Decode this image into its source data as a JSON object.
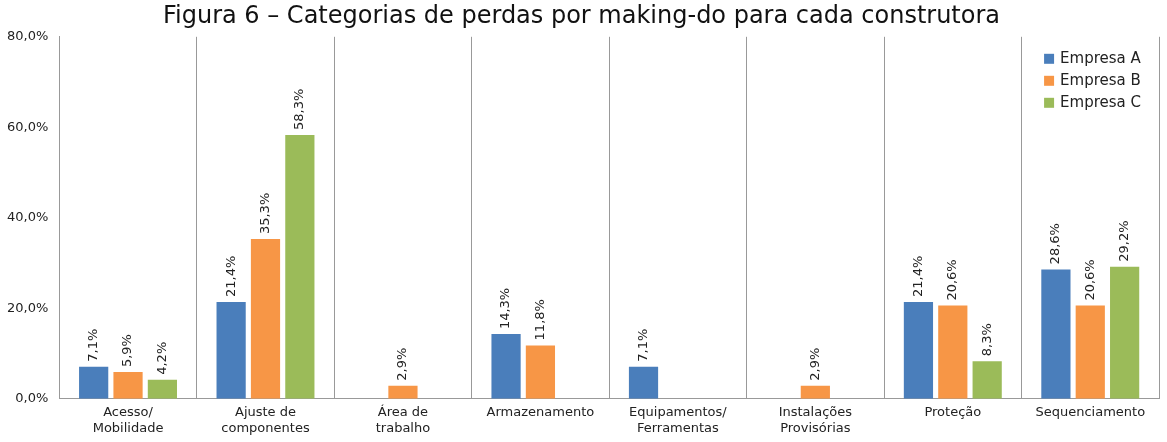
{
  "chart_data": {
    "type": "bar",
    "title": "Figura 6 – Categorias de perdas por making-do para cada construtora",
    "categories": [
      "Acesso/\nMobilidade",
      "Ajuste de\ncomponentes",
      "Área de\ntrabalho",
      "Armazenamento",
      "Equipamentos/\nFerramentas",
      "Instalações\nProvisórias",
      "Proteção",
      "Sequenciamento"
    ],
    "series": [
      {
        "name": "Empresa A",
        "color": "#4a7ebb",
        "values": [
          7.1,
          21.4,
          null,
          14.3,
          7.1,
          null,
          21.4,
          28.6
        ],
        "value_labels": [
          "7,1%",
          "21,4%",
          null,
          "14,3%",
          "7,1%",
          null,
          "21,4%",
          "28,6%"
        ]
      },
      {
        "name": "Empresa B",
        "color": "#f79646",
        "values": [
          5.9,
          35.3,
          2.9,
          11.8,
          null,
          2.9,
          20.6,
          20.6
        ],
        "value_labels": [
          "5,9%",
          "35,3%",
          "2,9%",
          "11,8%",
          null,
          "2,9%",
          "20,6%",
          "20,6%"
        ]
      },
      {
        "name": "Empresa C",
        "color": "#9bbb59",
        "values": [
          4.2,
          58.3,
          null,
          null,
          null,
          null,
          8.3,
          29.2
        ],
        "value_labels": [
          "4,2%",
          "58,3%",
          null,
          null,
          null,
          null,
          "8,3%",
          "29,2%"
        ]
      }
    ],
    "ylim": [
      0,
      80
    ],
    "yticks": [
      {
        "value": 0,
        "label": "0,0%"
      },
      {
        "value": 20,
        "label": "20,0%"
      },
      {
        "value": 40,
        "label": "40,0%"
      },
      {
        "value": 60,
        "label": "60,0%"
      },
      {
        "value": 80,
        "label": "80,0%"
      }
    ],
    "grid": "x",
    "legend": "top right"
  }
}
